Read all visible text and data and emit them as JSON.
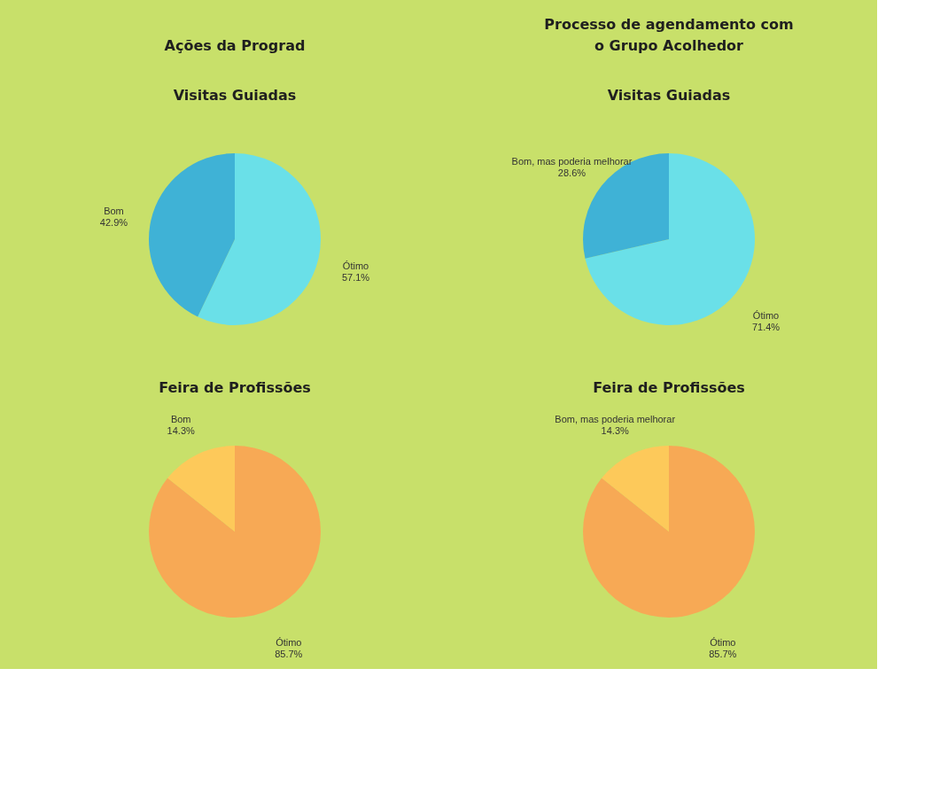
{
  "chart_data": [
    {
      "type": "pie",
      "title": "Ações da Prograd",
      "subtitle": "Visitas Guiadas",
      "categories": [
        "Ótimo",
        "Bom"
      ],
      "values": [
        57.1,
        42.9
      ],
      "colors": [
        "#6ae0e8",
        "#3fb2d6"
      ],
      "value_labels": [
        "57.1%",
        "42.9%"
      ],
      "legend": false
    },
    {
      "type": "pie",
      "title": "Processo de agendamento com\no Grupo Acolhedor",
      "subtitle": "Visitas Guiadas",
      "categories": [
        "Ótimo",
        "Bom, mas poderia melhorar"
      ],
      "values": [
        71.4,
        28.6
      ],
      "colors": [
        "#6ae0e8",
        "#3fb2d6"
      ],
      "value_labels": [
        "71.4%",
        "28.6%"
      ],
      "legend": false
    },
    {
      "type": "pie",
      "title": "Feira de Profissões",
      "categories": [
        "Ótimo",
        "Bom"
      ],
      "values": [
        85.7,
        14.3
      ],
      "colors": [
        "#f7a955",
        "#fdc95a"
      ],
      "value_labels": [
        "85.7%",
        "14.3%"
      ],
      "legend": false
    },
    {
      "type": "pie",
      "title": "Feira de Profissões",
      "categories": [
        "Ótimo",
        "Bom, mas poderia melhorar"
      ],
      "values": [
        85.7,
        14.3
      ],
      "colors": [
        "#f7a955",
        "#fdc95a"
      ],
      "value_labels": [
        "85.7%",
        "14.3%"
      ],
      "legend": false
    }
  ]
}
